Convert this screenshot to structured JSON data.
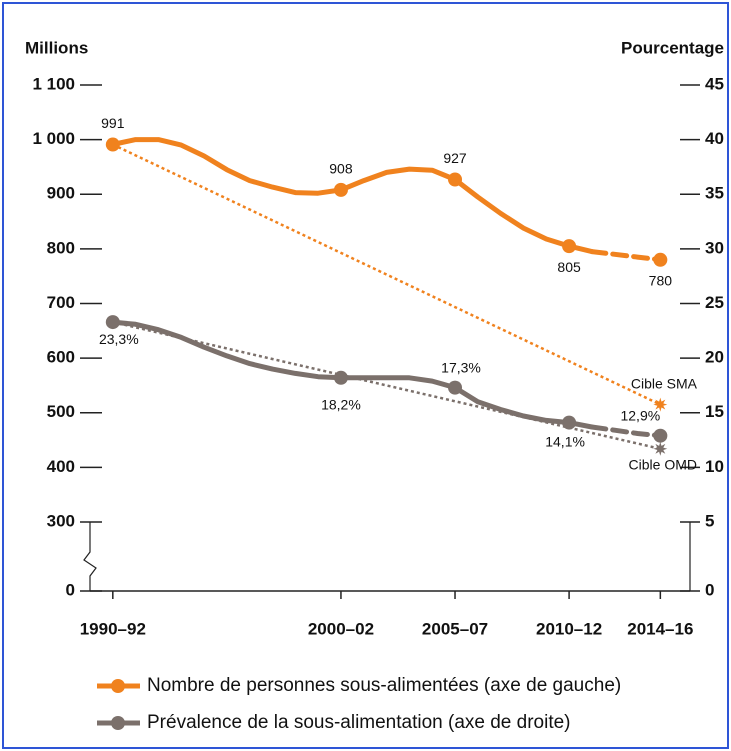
{
  "chart_data": {
    "type": "line",
    "y_title": "Millions",
    "y2_title": "Pourcentage",
    "x": [
      1991,
      1992,
      1993,
      1994,
      1995,
      1996,
      1997,
      1998,
      1999,
      2000,
      2001,
      2002,
      2003,
      2004,
      2005,
      2006,
      2007,
      2008,
      2009,
      2010,
      2011,
      2012,
      2013,
      2014,
      2015
    ],
    "xlim": [
      1990,
      2016.3
    ],
    "xticks": [
      {
        "value": 1991,
        "label": "1990–92"
      },
      {
        "value": 2001,
        "label": "2000–02"
      },
      {
        "value": 2006,
        "label": "2005–07"
      },
      {
        "value": 2011,
        "label": "2010–12"
      },
      {
        "value": 2015,
        "label": "2014–16"
      }
    ],
    "ylim": [
      0,
      1100
    ],
    "y_break": [
      0,
      300
    ],
    "yticks": [
      0,
      300,
      400,
      500,
      600,
      700,
      800,
      900,
      {
        "value": 1000,
        "label": "1 000"
      },
      {
        "value": 1100,
        "label": "1 100"
      }
    ],
    "y2lim": [
      0,
      45
    ],
    "y2_break": [
      0,
      5
    ],
    "y2ticks": [
      0,
      5,
      10,
      15,
      20,
      25,
      30,
      35,
      40,
      45
    ],
    "dashed_from": 2012,
    "series": [
      {
        "name": "Nombre de personnes sous-alimentées (axe de gauche)",
        "color": "#f0821e",
        "axis": "y",
        "values": [
          991,
          1000,
          1000,
          990,
          970,
          945,
          925,
          913,
          903,
          902,
          908,
          925,
          940,
          946,
          944,
          927,
          895,
          865,
          838,
          818,
          805,
          795,
          790,
          785,
          780
        ],
        "value_labels": [
          "991",
          null,
          null,
          null,
          null,
          null,
          null,
          null,
          null,
          null,
          "908",
          null,
          null,
          null,
          null,
          "927",
          null,
          null,
          null,
          null,
          "805",
          null,
          null,
          null,
          "780"
        ]
      },
      {
        "name": "Prévalence de la sous-alimentation (axe de droite)",
        "color": "#7b706b",
        "axis": "y2",
        "values": [
          23.3,
          23.1,
          22.6,
          21.9,
          21.0,
          20.2,
          19.5,
          19.0,
          18.6,
          18.3,
          18.2,
          18.2,
          18.2,
          18.2,
          17.9,
          17.3,
          16.0,
          15.3,
          14.7,
          14.3,
          14.1,
          13.7,
          13.4,
          13.1,
          12.9
        ],
        "value_labels": [
          "23,3%",
          null,
          null,
          null,
          null,
          null,
          null,
          null,
          null,
          null,
          "18,2%",
          null,
          null,
          null,
          null,
          "17,3%",
          null,
          null,
          null,
          null,
          "14,1%",
          null,
          null,
          null,
          "12,9%"
        ]
      }
    ],
    "targets": [
      {
        "label": "Cible SMA",
        "color": "#f0821e",
        "axis": "y",
        "x": [
          1991,
          2015
        ],
        "values": [
          991,
          515
        ]
      },
      {
        "label": "Cible OMD",
        "color": "#7b706b",
        "axis": "y2",
        "x": [
          1991,
          2015
        ],
        "values": [
          23.3,
          11.7
        ]
      }
    ]
  }
}
